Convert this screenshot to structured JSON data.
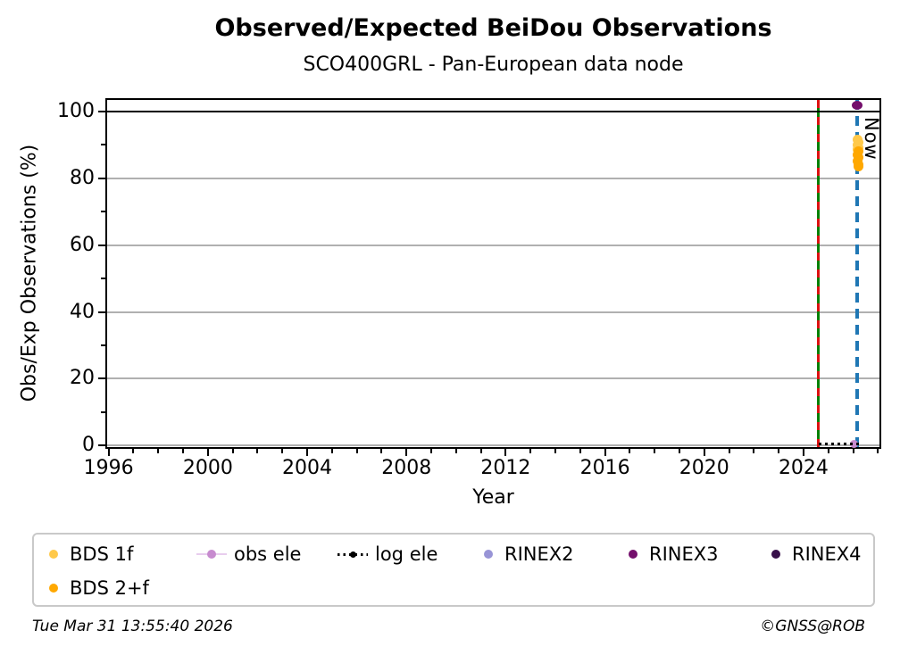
{
  "title": "Observed/Expected BeiDou Observations",
  "subtitle": "SCO400GRL - Pan-European data node",
  "footer": {
    "timestamp": "Tue Mar 31 13:55:40 2026",
    "copyright": "©GNSS@ROB"
  },
  "legend": {
    "items": [
      {
        "label": "BDS 1f",
        "color": "#ffc94a",
        "marker": "dot"
      },
      {
        "label": "BDS 2+f",
        "color": "#ffa800",
        "marker": "dot"
      },
      {
        "label": "obs ele",
        "color": "#c78bcf",
        "line_color": "#e8cdee",
        "marker": "dot-on-line"
      },
      {
        "label": "log ele",
        "color": "#000000",
        "marker": "dot-on-dotted-line"
      },
      {
        "label": "RINEX2",
        "color": "#9894d6",
        "marker": "dot"
      },
      {
        "label": "RINEX3",
        "color": "#740f6c",
        "marker": "dot"
      },
      {
        "label": "RINEX4",
        "color": "#38104a",
        "marker": "dot"
      }
    ]
  },
  "chart_data": {
    "type": "scatter",
    "title": "Observed/Expected BeiDou Observations",
    "subtitle": "SCO400GRL - Pan-European data node",
    "xlabel": "Year",
    "ylabel": "Obs/Exp Observations (%)",
    "xlim": [
      1995.94,
      2027.06
    ],
    "ylim": [
      -0.5,
      103.5
    ],
    "x_major_ticks": [
      1996,
      2000,
      2004,
      2008,
      2012,
      2016,
      2020,
      2024
    ],
    "x_minor_tick_interval": 1,
    "y_major_ticks": [
      0,
      20,
      40,
      60,
      80,
      100
    ],
    "y_minor_ticks": [
      10,
      30,
      50,
      70,
      90
    ],
    "grid": {
      "horizontal_major": true,
      "color": "#b0b0b0"
    },
    "legend_position": "below-plot-two-rows",
    "series": [
      {
        "name": "BDS 1f",
        "marker": "circle",
        "color": "#ffc94a",
        "points": [
          [
            2026.18,
            91.5
          ],
          [
            2026.22,
            90.7
          ],
          [
            2026.17,
            90.0
          ],
          [
            2026.21,
            89.2
          ],
          [
            2026.19,
            88.6
          ]
        ]
      },
      {
        "name": "BDS 2+f",
        "marker": "circle",
        "color": "#ffa800",
        "points": [
          [
            2026.2,
            88.0
          ],
          [
            2026.17,
            87.1
          ],
          [
            2026.22,
            86.2
          ],
          [
            2026.19,
            85.1
          ],
          [
            2026.21,
            84.2
          ],
          [
            2026.2,
            83.5
          ]
        ]
      },
      {
        "name": "obs ele",
        "marker": "circle",
        "color": "#c78bcf",
        "points": [
          [
            2026.05,
            0.4
          ]
        ]
      },
      {
        "name": "log ele",
        "marker": "dotted-line",
        "color": "#000000",
        "points": [
          [
            2024.62,
            0.5
          ],
          [
            2026.3,
            0.5
          ]
        ]
      },
      {
        "name": "RINEX2",
        "marker": "circle",
        "color": "#9894d6",
        "points": []
      },
      {
        "name": "RINEX3",
        "marker": "circle",
        "color": "#740f6c",
        "points": [
          [
            2026.15,
            101.5
          ]
        ]
      },
      {
        "name": "RINEX4",
        "marker": "circle",
        "color": "#38104a",
        "points": []
      }
    ],
    "reference_lines": [
      {
        "axis": "y",
        "value": 100,
        "color": "#000000",
        "style": "solid"
      },
      {
        "axis": "x",
        "value": 2024.6,
        "color": "#008000",
        "style": "solid",
        "overlay_color": "#dd1111",
        "overlay_style": "dashed"
      },
      {
        "axis": "x",
        "value": 2026.15,
        "color": "#1f77b4",
        "style": "dashed",
        "label": "Now"
      }
    ]
  }
}
